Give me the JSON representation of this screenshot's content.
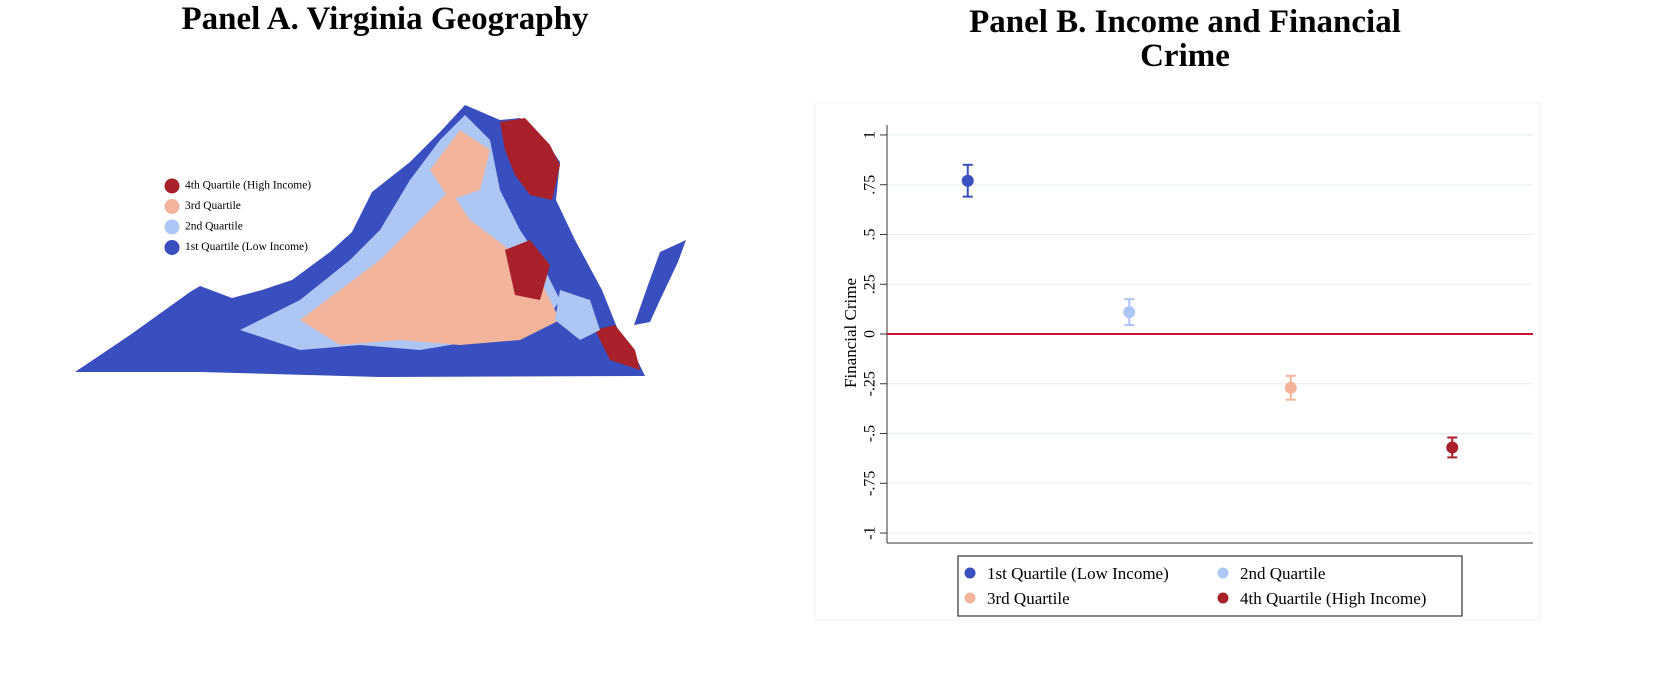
{
  "panel_a": {
    "title": "Panel A. Virginia Geography",
    "legend": [
      {
        "label": "4th Quartile (High Income)",
        "color": "#a8202a"
      },
      {
        "label": "3rd Quartile",
        "color": "#f2b49b"
      },
      {
        "label": "2nd Quartile",
        "color": "#aec6f4"
      },
      {
        "label": "1st Quartile (Low Income)",
        "color": "#3a4fbf"
      }
    ]
  },
  "chart_data": {
    "type": "errorbar",
    "title": "Panel B. Income and Financial Crime",
    "y_label": "Financial Crime",
    "categories": [
      "1st Quartile (Low Income)",
      "2nd Quartile",
      "3rd Quartile",
      "4th Quartile (High Income)"
    ],
    "colors": [
      "#3a4fbf",
      "#aec6f4",
      "#f2b49b",
      "#a8202a"
    ],
    "values": [
      0.77,
      0.11,
      -0.27,
      -0.57
    ],
    "errors": [
      0.08,
      0.065,
      0.06,
      0.05
    ],
    "ylim": [
      -1.05,
      1.05
    ],
    "yticks": [
      1,
      {
        "value": 0.75,
        "label": ".75"
      },
      {
        "value": 0.5,
        "label": ".5"
      },
      {
        "value": 0.25,
        "label": ".25"
      },
      0,
      {
        "value": -0.25,
        "label": "-.25"
      },
      {
        "value": -0.5,
        "label": "-.5"
      },
      {
        "value": -0.75,
        "label": "-.75"
      },
      -1
    ],
    "reference_line": 0,
    "reference_color": "#c8102e",
    "grid": true
  }
}
